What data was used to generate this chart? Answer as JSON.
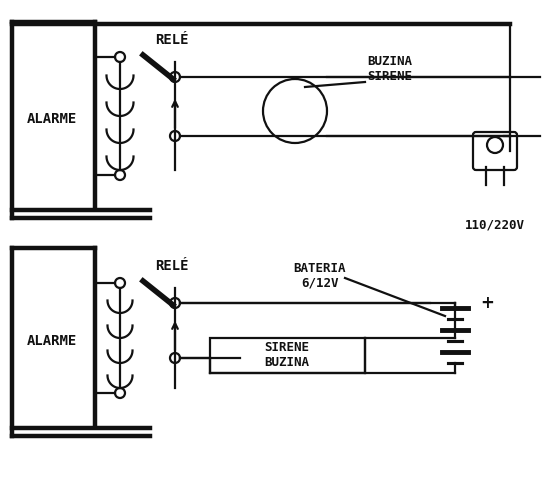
{
  "bg_color": "#ffffff",
  "lc": "#111111",
  "lw": 1.6,
  "text_rele": "RELÉ",
  "text_alarme": "ALARME",
  "text_buzina_sirene": "BUZINA\nSIRENE",
  "text_bateria": "BATERIA\n6/12V",
  "text_sirene_buzina": "SIRENE\nBUZINA",
  "text_110": "110/220V",
  "text_plus": "+",
  "figsize": [
    5.55,
    4.84
  ],
  "dpi": 100
}
